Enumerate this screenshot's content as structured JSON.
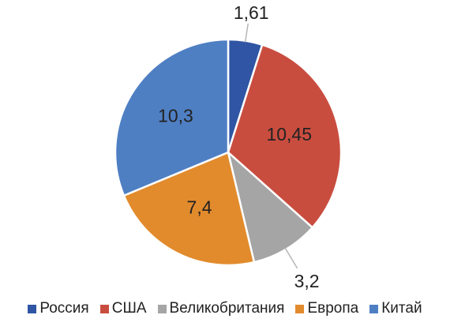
{
  "chart_data": {
    "type": "pie",
    "title": "",
    "categories": [
      "Россия",
      "США",
      "Великобритания",
      "Европа",
      "Китай"
    ],
    "values": [
      1.61,
      10.45,
      3.2,
      7.4,
      10.3
    ],
    "value_labels": [
      "1,61",
      "10,45",
      "3,2",
      "7,4",
      "10,3"
    ],
    "colors": [
      "#2f55a4",
      "#c94d3f",
      "#a5a5a5",
      "#e28b2d",
      "#4f7fc3"
    ],
    "legend_position": "bottom",
    "start_angle_deg": 0,
    "direction": "clockwise"
  }
}
